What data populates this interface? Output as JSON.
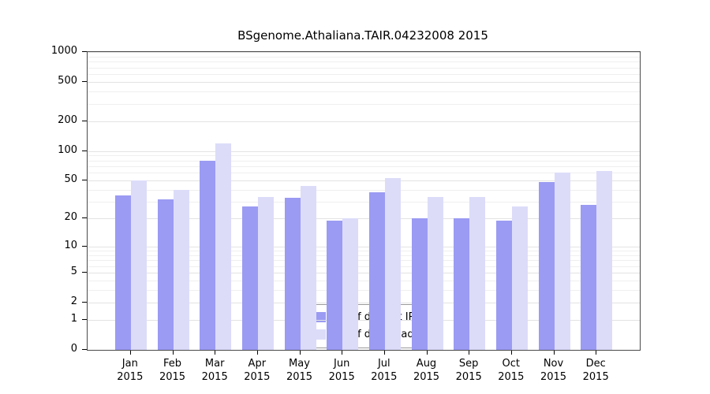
{
  "chart_data": {
    "type": "bar",
    "title": "BSgenome.Athaliana.TAIR.04232008 2015",
    "categories": [
      "Jan",
      "Feb",
      "Mar",
      "Apr",
      "May",
      "Jun",
      "Jul",
      "Aug",
      "Sep",
      "Oct",
      "Nov",
      "Dec"
    ],
    "year_label": "2015",
    "series": [
      {
        "name": "Nb of distinct IPs",
        "color": "#9b9bf3",
        "values": [
          35,
          32,
          80,
          27,
          33,
          19,
          38,
          20,
          20,
          19,
          48,
          28
        ]
      },
      {
        "name": "Nb of downloads",
        "color": "#dcdcf9",
        "values": [
          50,
          40,
          120,
          34,
          44,
          20,
          53,
          34,
          34,
          27,
          60,
          62
        ]
      }
    ],
    "y_ticks": [
      0,
      1,
      2,
      5,
      10,
      20,
      50,
      100,
      200,
      500,
      1000
    ],
    "scale": "log10(1+x)",
    "ylim": [
      0,
      1000
    ],
    "grid": true,
    "legend_position": "bottom-center"
  }
}
